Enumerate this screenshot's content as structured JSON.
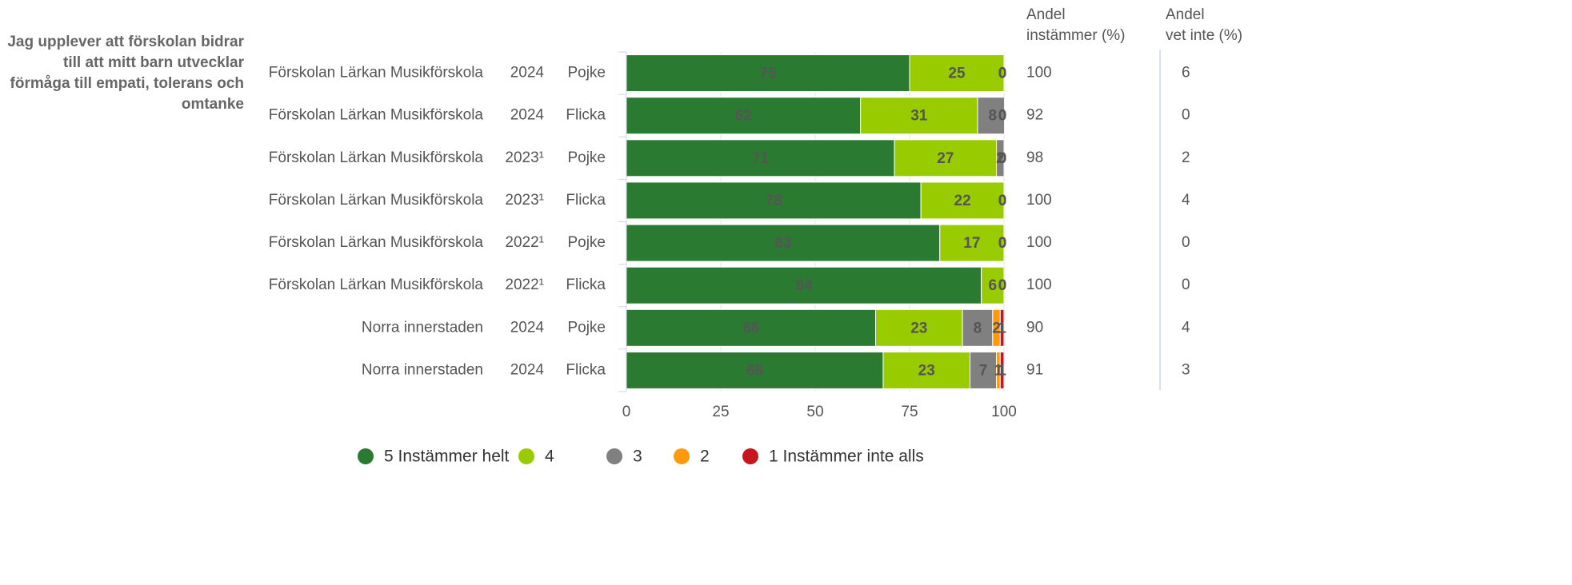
{
  "chart_data": {
    "type": "bar",
    "orientation": "horizontal",
    "stacked": true,
    "question_lines": [
      "Jag upplever att förskolan bidrar",
      "till att mitt barn utvecklar",
      "förmåga till empati, tolerans och",
      "omtanke"
    ],
    "categories": [
      [
        "Förskolan Lärkan Musikförskola",
        "2024",
        "Pojke"
      ],
      [
        "Förskolan Lärkan Musikförskola",
        "2024",
        "Flicka"
      ],
      [
        "Förskolan Lärkan Musikförskola",
        "2023¹",
        "Pojke"
      ],
      [
        "Förskolan Lärkan Musikförskola",
        "2023¹",
        "Flicka"
      ],
      [
        "Förskolan Lärkan Musikförskola",
        "2022¹",
        "Pojke"
      ],
      [
        "Förskolan Lärkan Musikförskola",
        "2022¹",
        "Flicka"
      ],
      [
        "Norra innerstaden",
        "2024",
        "Pojke"
      ],
      [
        "Norra innerstaden",
        "2024",
        "Flicka"
      ]
    ],
    "series": [
      {
        "name": "5 Instämmer helt",
        "color": "#2a7a32",
        "label_color": "#ffffff",
        "values": [
          75,
          62,
          71,
          78,
          83,
          94,
          66,
          68
        ]
      },
      {
        "name": "4",
        "color": "#99cc00",
        "label_color": "#111111",
        "values": [
          25,
          31,
          27,
          22,
          17,
          6,
          23,
          23
        ]
      },
      {
        "name": "3",
        "color": "#808080",
        "label_color": "#111111",
        "values": [
          0,
          8,
          2,
          0,
          0,
          0,
          8,
          7
        ]
      },
      {
        "name": "2",
        "color": "#ff9a0e",
        "label_color": "#111111",
        "values": [
          0,
          0,
          0,
          0,
          0,
          0,
          2,
          1
        ]
      },
      {
        "name": "1 Instämmer inte alls",
        "color": "#c8161d",
        "label_color": "#111111",
        "values": [
          0,
          0,
          0,
          0,
          0,
          0,
          1,
          1
        ]
      }
    ],
    "xlim": [
      0,
      100
    ],
    "xticks": [
      0,
      25,
      50,
      75,
      100
    ],
    "grid": true,
    "columns": [
      {
        "header_lines": [
          "Andel",
          "instämmer (%)"
        ],
        "values": [
          100,
          92,
          98,
          100,
          100,
          100,
          90,
          91
        ]
      },
      {
        "header_lines": [
          "Andel",
          "vet inte (%)"
        ],
        "values": [
          6,
          0,
          2,
          4,
          0,
          0,
          4,
          3
        ]
      }
    ]
  }
}
